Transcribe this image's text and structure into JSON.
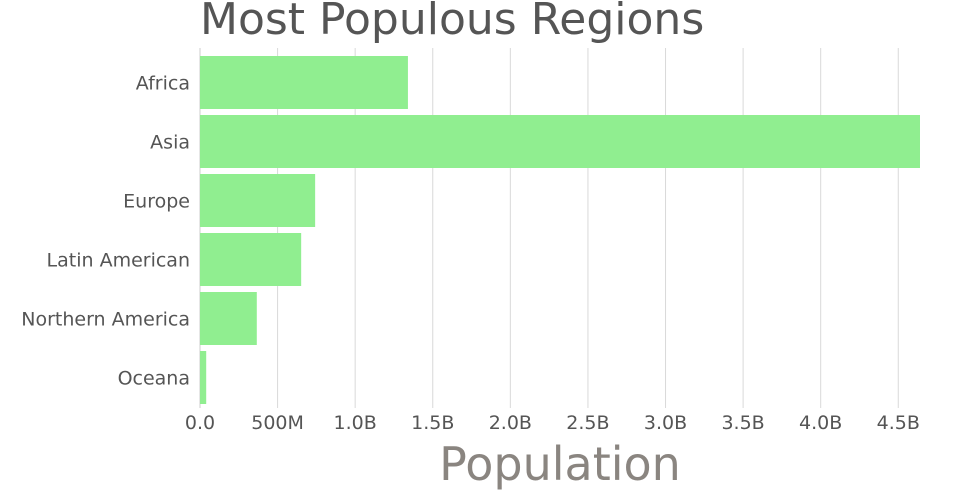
{
  "chart_data": {
    "type": "bar",
    "orientation": "horizontal",
    "title": "Most Populous Regions",
    "xlabel": "Population",
    "ylabel": "",
    "categories": [
      "Africa",
      "Asia",
      "Europe",
      "Latin American",
      "Northern America",
      "Oceana"
    ],
    "values": [
      1340000000,
      4640000000,
      742000000,
      652000000,
      366000000,
      40000000
    ],
    "xlim": [
      0,
      4640000000
    ],
    "x_ticks": [
      0,
      500000000,
      1000000000,
      1500000000,
      2000000000,
      2500000000,
      3000000000,
      3500000000,
      4000000000,
      4500000000
    ],
    "x_tick_labels": [
      "0.0",
      "500M",
      "1.0B",
      "1.5B",
      "2.0B",
      "2.5B",
      "3.0B",
      "3.5B",
      "4.0B",
      "4.5B"
    ],
    "grid": true,
    "legend": "none",
    "colors": {
      "bar": "#90ee90",
      "grid": "#d9d9d9",
      "axis": "#cccccc",
      "text": "#555555",
      "title": "#555555",
      "xlabel": "#8a8580"
    }
  }
}
